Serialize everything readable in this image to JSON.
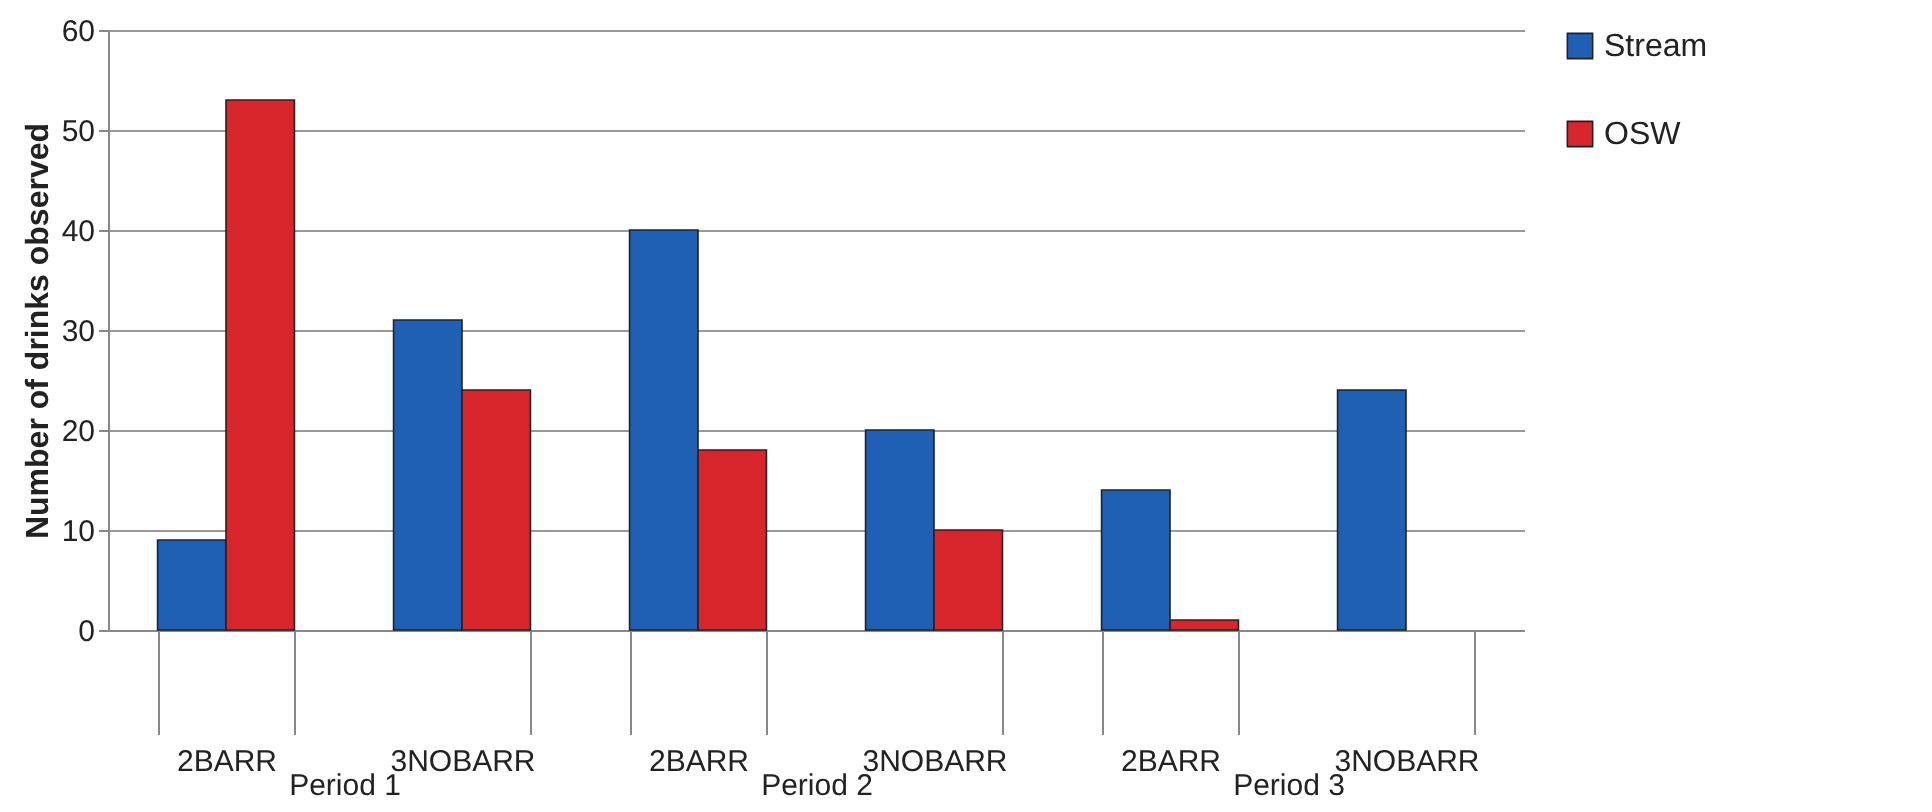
{
  "chart_data": [
    {
      "type": "bar",
      "xlabel": "Period 1",
      "ylabel": "Number of drinks observed",
      "categories": [
        "2BARR",
        "3NOBARR"
      ],
      "series": [
        {
          "name": "Stream",
          "color": "#1f5fb4",
          "values": [
            9,
            31
          ]
        },
        {
          "name": "OSW",
          "color": "#d9262c",
          "values": [
            53,
            24
          ]
        }
      ],
      "ylim": [
        0,
        60
      ],
      "yticks": [
        0,
        10,
        20,
        30,
        40,
        50,
        60
      ],
      "grid": "y",
      "legend": "right"
    },
    {
      "type": "bar",
      "xlabel": "Period 2",
      "categories": [
        "2BARR",
        "3NOBARR"
      ],
      "series": [
        {
          "name": "Stream",
          "color": "#1f5fb4",
          "values": [
            40,
            20
          ]
        },
        {
          "name": "OSW",
          "color": "#d9262c",
          "values": [
            18,
            10
          ]
        }
      ],
      "ylim": [
        0,
        60
      ],
      "yticks": [
        0,
        10,
        20,
        30,
        40,
        50,
        60
      ],
      "grid": "y",
      "tick_labels": "x"
    },
    {
      "type": "bar",
      "xlabel": "Period 3",
      "categories": [
        "2BARR",
        "3NOBARR"
      ],
      "series": [
        {
          "name": "Stream",
          "color": "#1f5fb4",
          "values": [
            14,
            24
          ]
        },
        {
          "name": "OSW",
          "color": "#d9262c",
          "values": [
            1,
            null
          ]
        }
      ],
      "ylim": [
        0,
        60
      ],
      "yticks": [
        0,
        10,
        20,
        30,
        40,
        50,
        60
      ],
      "grid": "y",
      "tick_labels": "x"
    }
  ]
}
